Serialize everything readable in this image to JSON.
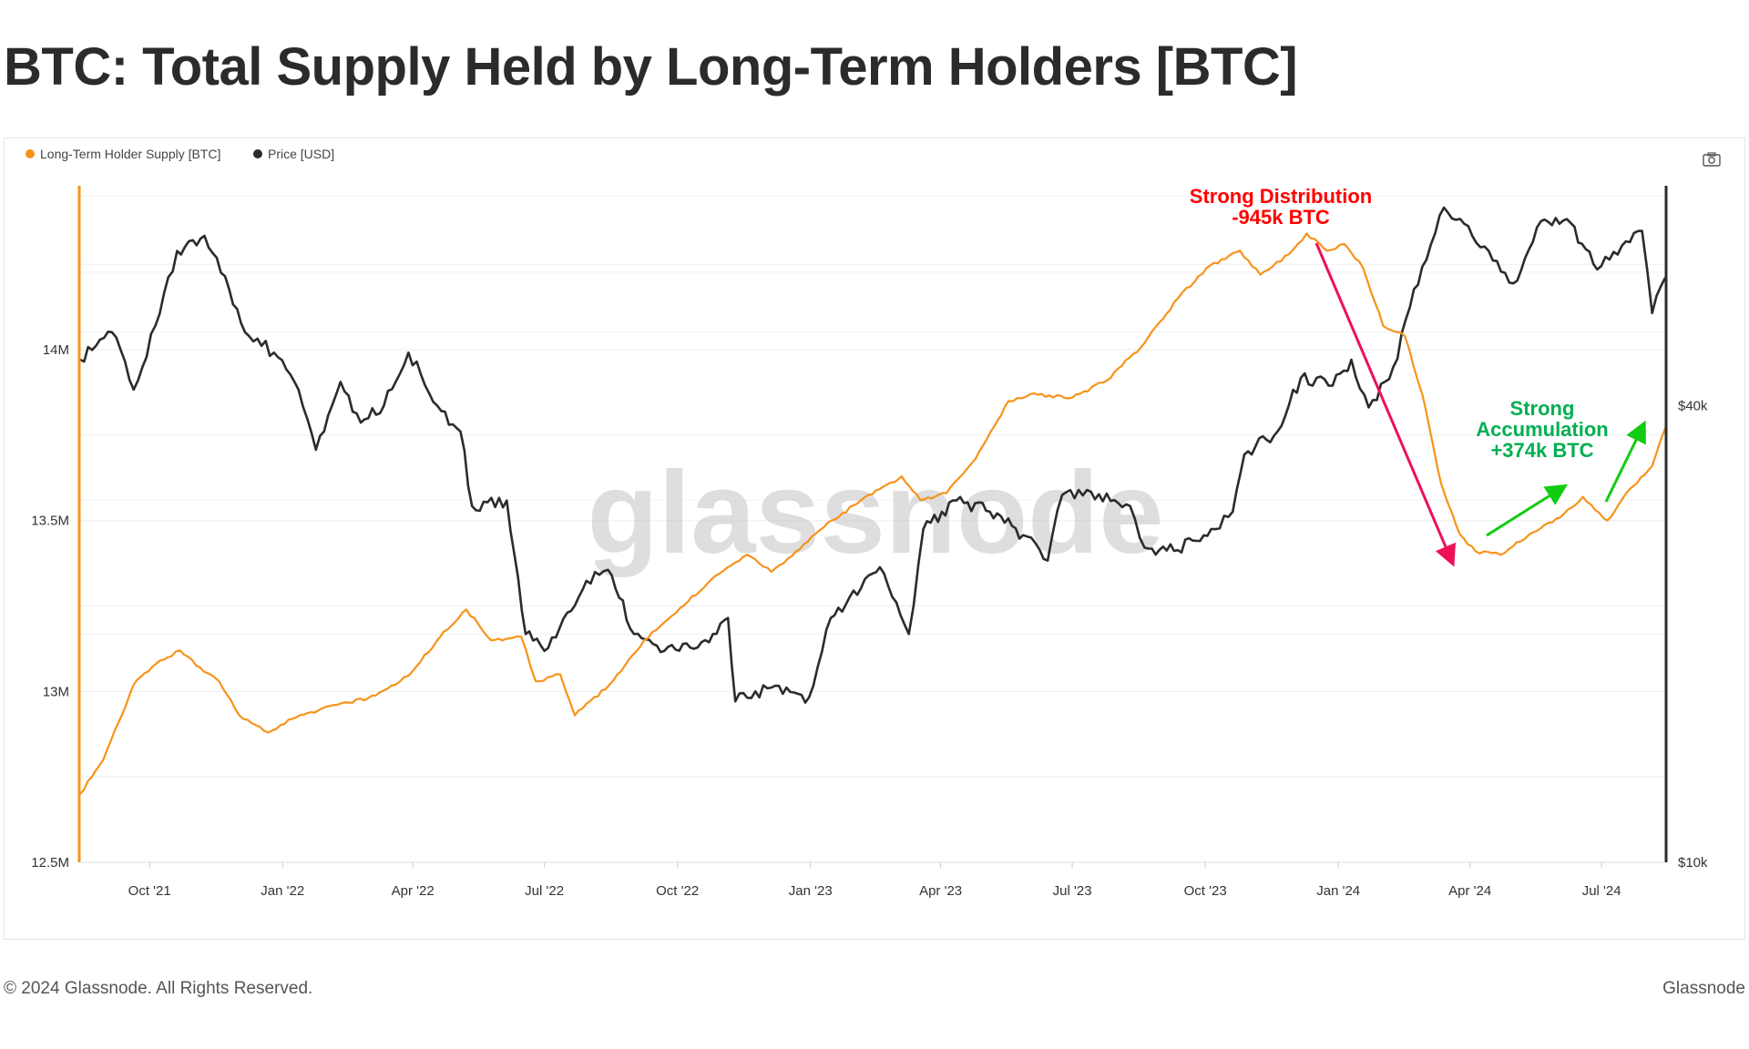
{
  "title": "BTC: Total Supply Held by Long-Term Holders [BTC]",
  "footer": {
    "copyright": "© 2024 Glassnode. All Rights Reserved.",
    "brand": "Glassnode"
  },
  "watermark": "glassnode",
  "toolbar": {
    "camera_icon": "camera-icon"
  },
  "colors": {
    "lth": "#f7931a",
    "price": "#2b2b2b",
    "distribution": "#ff0000",
    "distribution_arrow": "#ee1155",
    "accumulation": "#00b050",
    "accumulation_arrow": "#11cc11"
  },
  "annotations": {
    "distribution": [
      "Strong Distribution",
      "-945k BTC"
    ],
    "accumulation": [
      "Strong",
      "Accumulation",
      "+374k BTC"
    ]
  },
  "chart_data": {
    "type": "line",
    "title": "BTC: Total Supply Held by Long-Term Holders [BTC]",
    "legend_position": "top-left",
    "grid": true,
    "x_ticks": [
      "Oct '21",
      "Jan '22",
      "Apr '22",
      "Jul '22",
      "Oct '22",
      "Jan '23",
      "Apr '23",
      "Jul '23",
      "Oct '23",
      "Jan '24",
      "Apr '24",
      "Jul '24"
    ],
    "x_tick_dates": [
      "2021-10-01",
      "2022-01-01",
      "2022-04-01",
      "2022-07-01",
      "2022-10-01",
      "2023-01-01",
      "2023-04-01",
      "2023-07-01",
      "2023-10-01",
      "2024-01-01",
      "2024-04-01",
      "2024-07-01"
    ],
    "xlim": [
      "2021-08-14",
      "2024-08-14"
    ],
    "y_left": {
      "ticks": [
        "12.5M",
        "13M",
        "13.5M",
        "14M"
      ],
      "tick_values": [
        12.5,
        13,
        13.5,
        14
      ],
      "range": [
        12.5,
        14.48
      ],
      "unit": "M BTC"
    },
    "y_right": {
      "ticks": [
        "$10k",
        "$40k"
      ],
      "tick_values": [
        10000,
        40000
      ],
      "scale": "log",
      "range": [
        10000,
        78000
      ]
    },
    "series": [
      {
        "name": "Long-Term Holder Supply [BTC]",
        "axis": "left",
        "color": "#f7931a",
        "points": [
          [
            "2021-08-14",
            12.7
          ],
          [
            "2021-08-30",
            12.8
          ],
          [
            "2021-09-20",
            13.02
          ],
          [
            "2021-10-08",
            13.09
          ],
          [
            "2021-10-22",
            13.12
          ],
          [
            "2021-11-05",
            13.07
          ],
          [
            "2021-11-18",
            13.03
          ],
          [
            "2021-12-02",
            12.93
          ],
          [
            "2021-12-22",
            12.88
          ],
          [
            "2022-01-08",
            12.92
          ],
          [
            "2022-02-05",
            12.96
          ],
          [
            "2022-03-01",
            12.98
          ],
          [
            "2022-03-20",
            13.02
          ],
          [
            "2022-04-01",
            13.06
          ],
          [
            "2022-04-20",
            13.16
          ],
          [
            "2022-05-08",
            13.24
          ],
          [
            "2022-05-25",
            13.15
          ],
          [
            "2022-06-15",
            13.16
          ],
          [
            "2022-06-25",
            13.03
          ],
          [
            "2022-07-12",
            13.05
          ],
          [
            "2022-07-22",
            12.93
          ],
          [
            "2022-08-15",
            13.02
          ],
          [
            "2022-09-08",
            13.15
          ],
          [
            "2022-09-30",
            13.23
          ],
          [
            "2022-10-25",
            13.33
          ],
          [
            "2022-11-18",
            13.4
          ],
          [
            "2022-12-05",
            13.35
          ],
          [
            "2022-12-22",
            13.41
          ],
          [
            "2023-01-10",
            13.48
          ],
          [
            "2023-02-05",
            13.56
          ],
          [
            "2023-03-05",
            13.63
          ],
          [
            "2023-03-18",
            13.56
          ],
          [
            "2023-04-05",
            13.58
          ],
          [
            "2023-04-25",
            13.68
          ],
          [
            "2023-05-18",
            13.85
          ],
          [
            "2023-06-02",
            13.87
          ],
          [
            "2023-07-01",
            13.86
          ],
          [
            "2023-07-25",
            13.91
          ],
          [
            "2023-08-20",
            14.02
          ],
          [
            "2023-09-12",
            14.15
          ],
          [
            "2023-10-02",
            14.24
          ],
          [
            "2023-10-25",
            14.29
          ],
          [
            "2023-11-08",
            14.22
          ],
          [
            "2023-11-28",
            14.28
          ],
          [
            "2023-12-10",
            14.34
          ],
          [
            "2023-12-24",
            14.29
          ],
          [
            "2024-01-05",
            14.31
          ],
          [
            "2024-01-18",
            14.24
          ],
          [
            "2024-02-01",
            14.07
          ],
          [
            "2024-02-16",
            14.04
          ],
          [
            "2024-02-28",
            13.87
          ],
          [
            "2024-03-12",
            13.61
          ],
          [
            "2024-03-25",
            13.46
          ],
          [
            "2024-04-05",
            13.41
          ],
          [
            "2024-04-22",
            13.4
          ],
          [
            "2024-05-12",
            13.46
          ],
          [
            "2024-06-05",
            13.52
          ],
          [
            "2024-06-18",
            13.57
          ],
          [
            "2024-07-05",
            13.5
          ],
          [
            "2024-07-18",
            13.58
          ],
          [
            "2024-08-05",
            13.66
          ],
          [
            "2024-08-14",
            13.77
          ]
        ]
      },
      {
        "name": "Price [USD]",
        "axis": "right",
        "color": "#2b2b2b",
        "points": [
          [
            "2021-08-14",
            46000
          ],
          [
            "2021-08-25",
            48000
          ],
          [
            "2021-09-05",
            50000
          ],
          [
            "2021-09-20",
            42000
          ],
          [
            "2021-10-05",
            51000
          ],
          [
            "2021-10-20",
            64000
          ],
          [
            "2021-11-08",
            67000
          ],
          [
            "2021-11-25",
            57000
          ],
          [
            "2021-12-06",
            50000
          ],
          [
            "2021-12-26",
            47000
          ],
          [
            "2022-01-12",
            42000
          ],
          [
            "2022-01-24",
            35000
          ],
          [
            "2022-02-10",
            43000
          ],
          [
            "2022-02-24",
            38000
          ],
          [
            "2022-03-12",
            40000
          ],
          [
            "2022-03-29",
            47000
          ],
          [
            "2022-04-18",
            40000
          ],
          [
            "2022-05-04",
            37000
          ],
          [
            "2022-05-12",
            29500
          ],
          [
            "2022-06-05",
            30000
          ],
          [
            "2022-06-18",
            20000
          ],
          [
            "2022-07-01",
            19000
          ],
          [
            "2022-07-30",
            23500
          ],
          [
            "2022-08-14",
            24300
          ],
          [
            "2022-09-01",
            20000
          ],
          [
            "2022-09-22",
            19000
          ],
          [
            "2022-10-15",
            19200
          ],
          [
            "2022-11-05",
            21000
          ],
          [
            "2022-11-10",
            16300
          ],
          [
            "2022-12-05",
            17000
          ],
          [
            "2022-12-31",
            16500
          ],
          [
            "2023-01-15",
            21000
          ],
          [
            "2023-02-05",
            23000
          ],
          [
            "2023-02-18",
            24500
          ],
          [
            "2023-03-10",
            20000
          ],
          [
            "2023-03-20",
            27500
          ],
          [
            "2023-04-12",
            30000
          ],
          [
            "2023-05-05",
            29000
          ],
          [
            "2023-05-28",
            27000
          ],
          [
            "2023-06-14",
            25000
          ],
          [
            "2023-06-24",
            30500
          ],
          [
            "2023-07-14",
            30800
          ],
          [
            "2023-08-10",
            29500
          ],
          [
            "2023-08-20",
            26000
          ],
          [
            "2023-09-12",
            25800
          ],
          [
            "2023-10-05",
            27500
          ],
          [
            "2023-10-20",
            29000
          ],
          [
            "2023-10-28",
            34500
          ],
          [
            "2023-11-20",
            37000
          ],
          [
            "2023-12-06",
            43500
          ],
          [
            "2023-12-28",
            42500
          ],
          [
            "2024-01-10",
            46000
          ],
          [
            "2024-01-22",
            39800
          ],
          [
            "2024-02-08",
            45000
          ],
          [
            "2024-02-28",
            61000
          ],
          [
            "2024-03-14",
            73000
          ],
          [
            "2024-03-28",
            69500
          ],
          [
            "2024-04-14",
            64000
          ],
          [
            "2024-05-01",
            58000
          ],
          [
            "2024-05-20",
            70000
          ],
          [
            "2024-06-07",
            70500
          ],
          [
            "2024-06-28",
            60500
          ],
          [
            "2024-07-15",
            65000
          ],
          [
            "2024-07-29",
            68000
          ],
          [
            "2024-08-05",
            53000
          ],
          [
            "2024-08-14",
            59000
          ]
        ]
      }
    ]
  }
}
